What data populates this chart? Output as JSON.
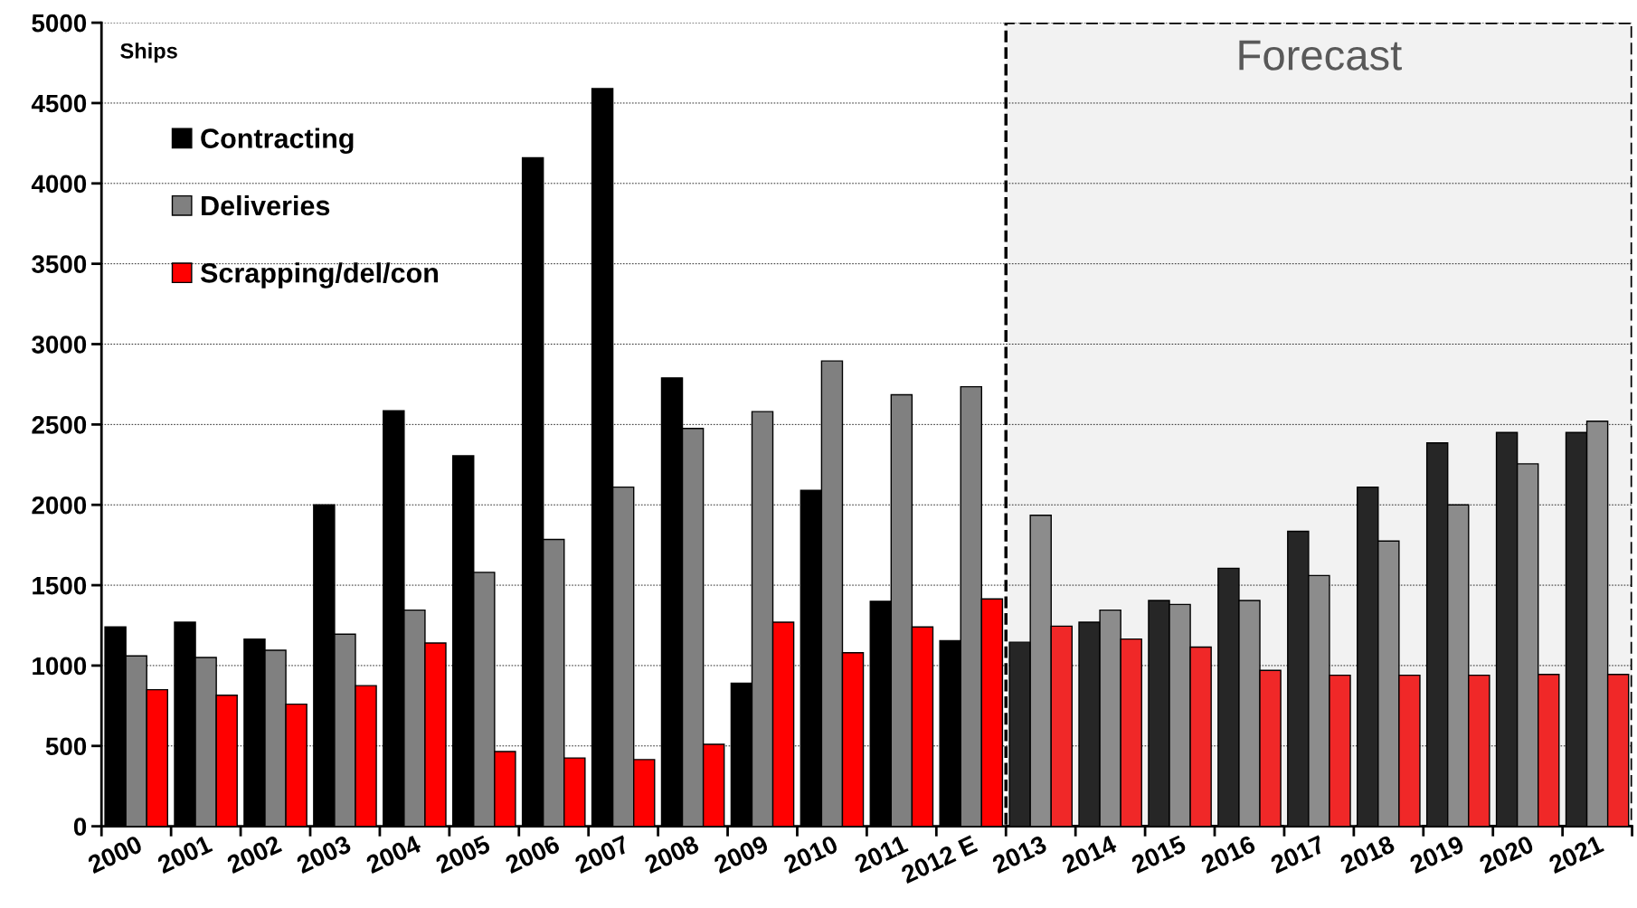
{
  "chart_data": {
    "type": "bar",
    "ylabel": "Ships",
    "categories": [
      "2000",
      "2001",
      "2002",
      "2003",
      "2004",
      "2005",
      "2006",
      "2007",
      "2008",
      "2009",
      "2010",
      "2011",
      "2012 E",
      "2013",
      "2014",
      "2015",
      "2016",
      "2017",
      "2018",
      "2019",
      "2020",
      "2021"
    ],
    "series": [
      {
        "name": "Contracting",
        "color": "#000000",
        "colors": [
          "#000000",
          "#000000",
          "#000000",
          "#000000",
          "#000000",
          "#000000",
          "#000000",
          "#000000",
          "#000000",
          "#000000",
          "#000000",
          "#000000",
          "#000000",
          "#262626",
          "#262626",
          "#262626",
          "#262626",
          "#262626",
          "#262626",
          "#262626",
          "#262626",
          "#262626"
        ],
        "values": [
          1240,
          1270,
          1165,
          2000,
          2585,
          2305,
          4160,
          4590,
          2790,
          890,
          2090,
          1400,
          1155,
          1145,
          1270,
          1405,
          1605,
          1835,
          2110,
          2385,
          2450,
          2450
        ]
      },
      {
        "name": "Deliveries",
        "color": "#808080",
        "colors": [
          "#808080",
          "#808080",
          "#808080",
          "#808080",
          "#808080",
          "#808080",
          "#808080",
          "#808080",
          "#808080",
          "#808080",
          "#808080",
          "#808080",
          "#808080",
          "#8c8c8c",
          "#8c8c8c",
          "#8c8c8c",
          "#8c8c8c",
          "#8c8c8c",
          "#8c8c8c",
          "#8c8c8c",
          "#8c8c8c",
          "#8c8c8c"
        ],
        "values": [
          1060,
          1050,
          1095,
          1195,
          1345,
          1580,
          1785,
          2110,
          2475,
          2580,
          2895,
          2685,
          2735,
          1935,
          1345,
          1380,
          1405,
          1560,
          1775,
          2000,
          2255,
          2520
        ]
      },
      {
        "name": "Scrapping/del/con",
        "color": "#ff0000",
        "colors": [
          "#ff0000",
          "#ff0000",
          "#ff0000",
          "#ff0000",
          "#ff0000",
          "#ff0000",
          "#ff0000",
          "#ff0000",
          "#ff0000",
          "#ff0000",
          "#ff0000",
          "#ff0000",
          "#ff0000",
          "#f02828",
          "#f02828",
          "#f02828",
          "#f02828",
          "#f02828",
          "#f02828",
          "#f02828",
          "#f02828",
          "#f02828"
        ],
        "values": [
          850,
          815,
          760,
          875,
          1140,
          465,
          425,
          415,
          510,
          1270,
          1080,
          1240,
          1415,
          1245,
          1165,
          1115,
          970,
          940,
          940,
          940,
          945,
          945
        ]
      }
    ],
    "ylim": [
      0,
      5000
    ],
    "yticks": [
      0,
      500,
      1000,
      1500,
      2000,
      2500,
      3000,
      3500,
      4000,
      4500,
      5000
    ],
    "bands": [
      {
        "axis": "x",
        "from": "2013",
        "to": "2021",
        "label": "Forecast",
        "color": "#f2f2f2"
      }
    ],
    "grid": "y",
    "legend": "top left"
  }
}
